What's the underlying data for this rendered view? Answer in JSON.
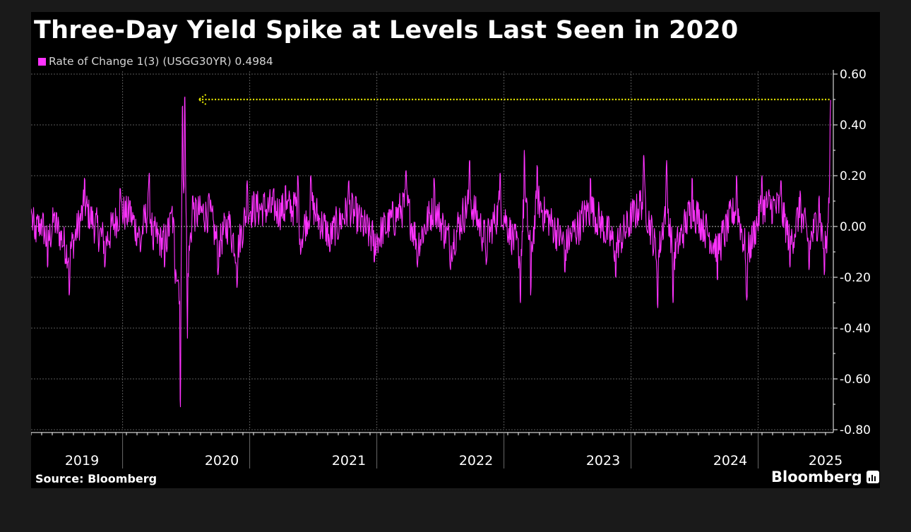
{
  "title": "Three-Day Yield Spike at Levels Last Seen in 2020",
  "legend": {
    "label": "Rate of Change 1(3) (USGG30YR) 0.4984",
    "color": "#ff33ff"
  },
  "source": "Source: Bloomberg",
  "brand": "Bloomberg",
  "chart_data": {
    "type": "line",
    "title": "Three-Day Yield Spike at Levels Last Seen in 2020",
    "xlabel": "",
    "ylabel": "",
    "series": [
      {
        "name": "Rate of Change 1(3) (USGG30YR)",
        "color": "#ff33ff",
        "last_value": 0.4984
      }
    ],
    "x_range": [
      2019.0,
      2025.3
    ],
    "ylim": [
      -0.8,
      0.6
    ],
    "y_ticks": [
      0.6,
      0.4,
      0.2,
      0.0,
      -0.2,
      -0.4,
      -0.6,
      -0.8
    ],
    "y_tick_labels": [
      "0.60",
      "0.40",
      "0.20",
      "0.00",
      "-0.20",
      "-0.40",
      "-0.60",
      "-0.80"
    ],
    "x_tick_labels": [
      "2019",
      "2020",
      "2021",
      "2022",
      "2023",
      "2024",
      "2025"
    ],
    "x_label_years": [
      2019.4,
      2020.5,
      2021.5,
      2022.5,
      2023.5,
      2024.5,
      2025.25
    ],
    "year_boundaries": [
      2019.72,
      2020.72,
      2021.72,
      2022.72,
      2023.72,
      2024.72
    ],
    "gridlines": true,
    "keypoints": [
      {
        "x": 2019.0,
        "y": 0.07
      },
      {
        "x": 2019.03,
        "y": -0.05
      },
      {
        "x": 2019.08,
        "y": 0.03
      },
      {
        "x": 2019.13,
        "y": -0.16
      },
      {
        "x": 2019.18,
        "y": 0.05
      },
      {
        "x": 2019.3,
        "y": -0.27
      },
      {
        "x": 2019.42,
        "y": 0.19
      },
      {
        "x": 2019.58,
        "y": -0.16
      },
      {
        "x": 2019.7,
        "y": 0.15
      },
      {
        "x": 2019.78,
        "y": 0.1
      },
      {
        "x": 2019.86,
        "y": -0.1
      },
      {
        "x": 2019.93,
        "y": 0.21
      },
      {
        "x": 2019.96,
        "y": -0.09
      },
      {
        "x": 2020.05,
        "y": -0.16
      },
      {
        "x": 2020.11,
        "y": 0.08
      },
      {
        "x": 2020.13,
        "y": -0.18
      },
      {
        "x": 2020.175,
        "y": -0.71
      },
      {
        "x": 2020.19,
        "y": 0.47
      },
      {
        "x": 2020.21,
        "y": 0.51
      },
      {
        "x": 2020.23,
        "y": -0.44
      },
      {
        "x": 2020.27,
        "y": 0.12
      },
      {
        "x": 2020.4,
        "y": 0.13
      },
      {
        "x": 2020.47,
        "y": -0.19
      },
      {
        "x": 2020.55,
        "y": 0.04
      },
      {
        "x": 2020.62,
        "y": -0.24
      },
      {
        "x": 2020.7,
        "y": 0.18
      },
      {
        "x": 2021.0,
        "y": 0.16
      },
      {
        "x": 2021.1,
        "y": 0.2
      },
      {
        "x": 2021.12,
        "y": -0.11
      },
      {
        "x": 2021.2,
        "y": 0.2
      },
      {
        "x": 2021.35,
        "y": -0.1
      },
      {
        "x": 2021.5,
        "y": 0.18
      },
      {
        "x": 2021.7,
        "y": -0.14
      },
      {
        "x": 2021.95,
        "y": 0.22
      },
      {
        "x": 2022.04,
        "y": -0.16
      },
      {
        "x": 2022.17,
        "y": 0.19
      },
      {
        "x": 2022.3,
        "y": -0.17
      },
      {
        "x": 2022.45,
        "y": 0.26
      },
      {
        "x": 2022.58,
        "y": -0.15
      },
      {
        "x": 2022.69,
        "y": 0.21
      },
      {
        "x": 2022.85,
        "y": -0.3
      },
      {
        "x": 2022.88,
        "y": 0.3
      },
      {
        "x": 2022.93,
        "y": -0.27
      },
      {
        "x": 2022.98,
        "y": 0.24
      },
      {
        "x": 2023.2,
        "y": -0.18
      },
      {
        "x": 2023.4,
        "y": 0.19
      },
      {
        "x": 2023.6,
        "y": -0.2
      },
      {
        "x": 2023.82,
        "y": 0.28
      },
      {
        "x": 2023.93,
        "y": -0.32
      },
      {
        "x": 2024.0,
        "y": 0.26
      },
      {
        "x": 2024.05,
        "y": -0.3
      },
      {
        "x": 2024.2,
        "y": 0.19
      },
      {
        "x": 2024.4,
        "y": -0.21
      },
      {
        "x": 2024.55,
        "y": 0.2
      },
      {
        "x": 2024.63,
        "y": -0.29
      },
      {
        "x": 2024.75,
        "y": 0.2
      },
      {
        "x": 2024.9,
        "y": 0.18
      },
      {
        "x": 2024.97,
        "y": -0.16
      },
      {
        "x": 2025.05,
        "y": 0.14
      },
      {
        "x": 2025.12,
        "y": -0.17
      },
      {
        "x": 2025.2,
        "y": 0.12
      },
      {
        "x": 2025.24,
        "y": -0.19
      },
      {
        "x": 2025.26,
        "y": -0.1
      },
      {
        "x": 2025.29,
        "y": 0.4984
      }
    ],
    "noise_amplitude": 0.075,
    "annotation": {
      "type": "dotted-reference-line",
      "y": 0.5,
      "x_start": 2020.32,
      "x_end": 2025.29,
      "arrow": "left",
      "color": "#e6e600"
    }
  }
}
